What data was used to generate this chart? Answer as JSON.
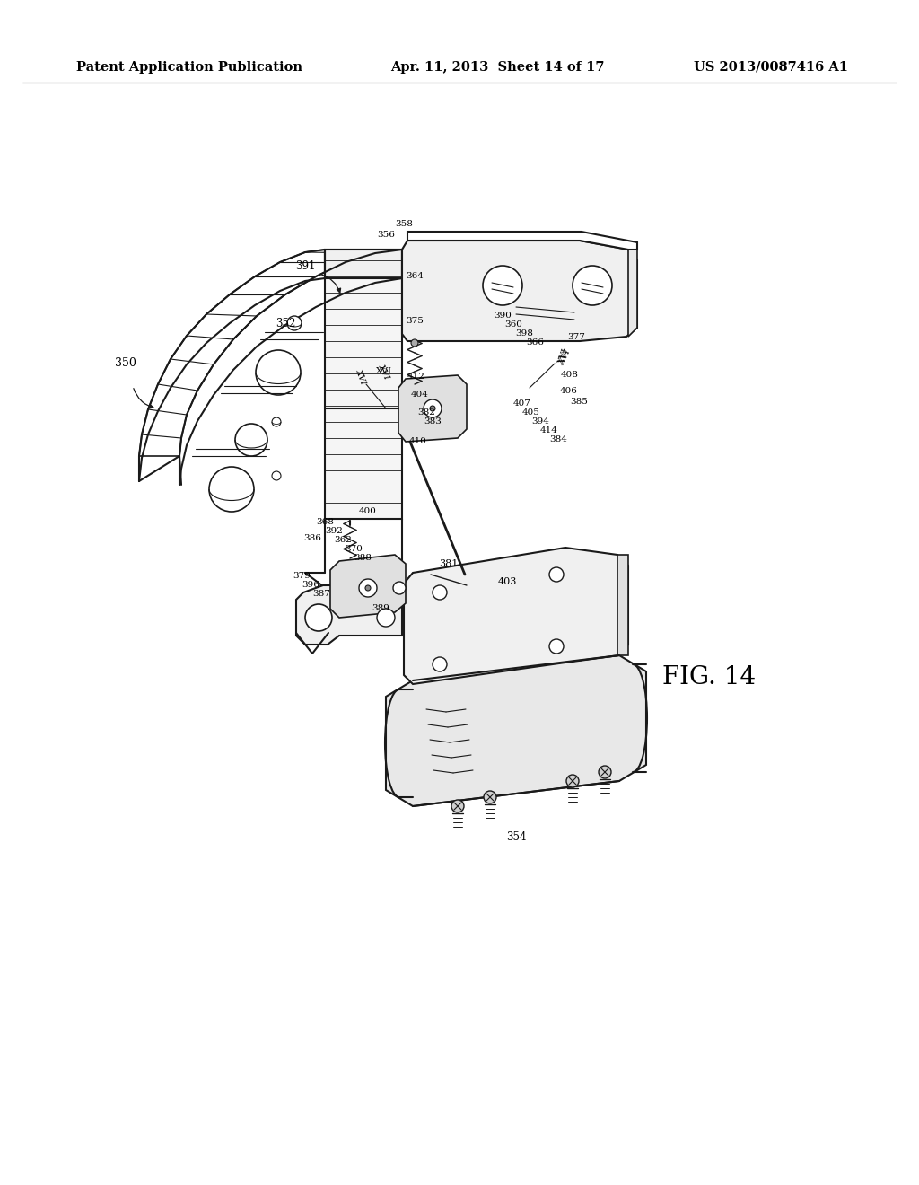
{
  "background_color": "#ffffff",
  "header_left": "Patent Application Publication",
  "header_center": "Apr. 11, 2013  Sheet 14 of 17",
  "header_right": "US 2013/0087416 A1",
  "line_color": "#1a1a1a",
  "text_color": "#000000",
  "fig_label": "FIG. 14"
}
